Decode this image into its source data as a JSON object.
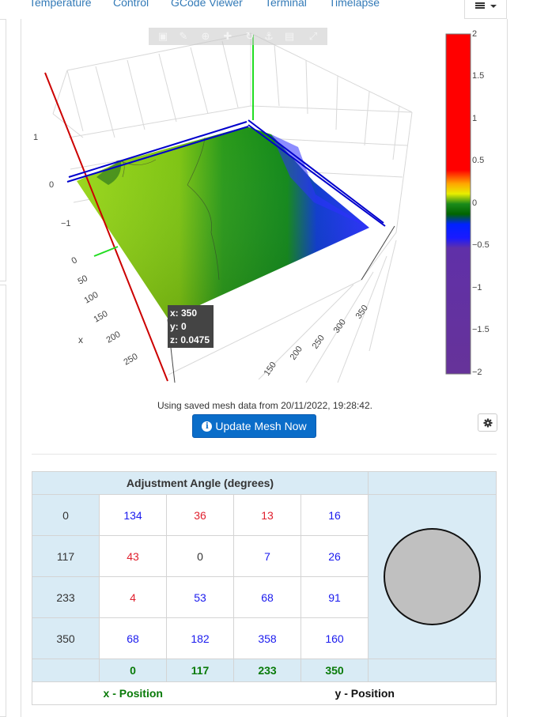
{
  "tabs": [
    {
      "label": "Temperature"
    },
    {
      "label": "Control"
    },
    {
      "label": "GCode Viewer"
    },
    {
      "label": "Terminal"
    },
    {
      "label": "Timelapse"
    }
  ],
  "plot": {
    "hover": {
      "x": "x: 350",
      "y": "y: 0",
      "z": "z: 0.0475"
    },
    "z_ticks": [
      "1",
      "0",
      "−1"
    ],
    "x_ticks": [
      "0",
      "50",
      "100",
      "150",
      "200",
      "250"
    ],
    "x_title": "x",
    "y_ticks": [
      "150",
      "200",
      "250",
      "300",
      "350"
    ],
    "colorbar_ticks": [
      "2",
      "1.5",
      "1",
      "0.5",
      "0",
      "−0.5",
      "−1",
      "−1.5",
      "−2"
    ],
    "colors": {
      "red_axis": "#cc0000",
      "green_axis": "#22dd22",
      "blue_axis": "#0000cc"
    }
  },
  "saved_message": "Using saved mesh data from 20/11/2022, 19:28:42.",
  "update_button_label": "Update Mesh Now",
  "adjustment": {
    "title": "Adjustment Angle (degrees)",
    "rows": [
      {
        "label": "0",
        "cells": [
          "134",
          "36",
          "13",
          "16"
        ]
      },
      {
        "label": "117",
        "cells": [
          "43",
          "0",
          "7",
          "26"
        ]
      },
      {
        "label": "233",
        "cells": [
          "4",
          "53",
          "68",
          "91"
        ]
      },
      {
        "label": "350",
        "cells": [
          "68",
          "182",
          "358",
          "160"
        ]
      }
    ],
    "col_labels": [
      "0",
      "117",
      "233",
      "350"
    ],
    "x_label": "x - Position",
    "y_label": "y - Position"
  }
}
